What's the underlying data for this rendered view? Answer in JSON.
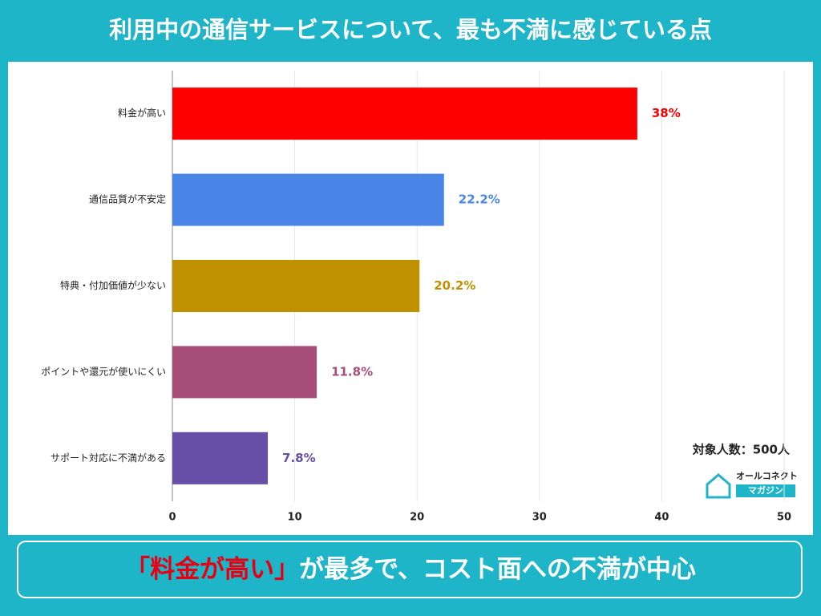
{
  "chart_data": {
    "type": "bar",
    "orientation": "horizontal",
    "title": "利用中の通信サービスについて、最も不満に感じている点",
    "categories": [
      "料金が高い",
      "通信品質が不安定",
      "特典・付加価値が少ない",
      "ポイントや還元が使いにくい",
      "サポート対応に不満がある"
    ],
    "values": [
      38,
      22.2,
      20.2,
      11.8,
      7.8
    ],
    "value_labels": [
      "38%",
      "22.2%",
      "20.2%",
      "11.8%",
      "7.8%"
    ],
    "colors": [
      "#ff0000",
      "#4a86e8",
      "#bf9000",
      "#a64d79",
      "#674ea7"
    ],
    "xlim": [
      0,
      50
    ],
    "xticks": [
      0,
      10,
      20,
      30,
      40,
      50
    ],
    "grid": true,
    "annotation": "対象人数：500人",
    "logo": [
      "オールコネクト",
      "マガジン"
    ],
    "footer": [
      "「料金が高い」",
      "が最多で、コスト面への不満が中心"
    ]
  }
}
